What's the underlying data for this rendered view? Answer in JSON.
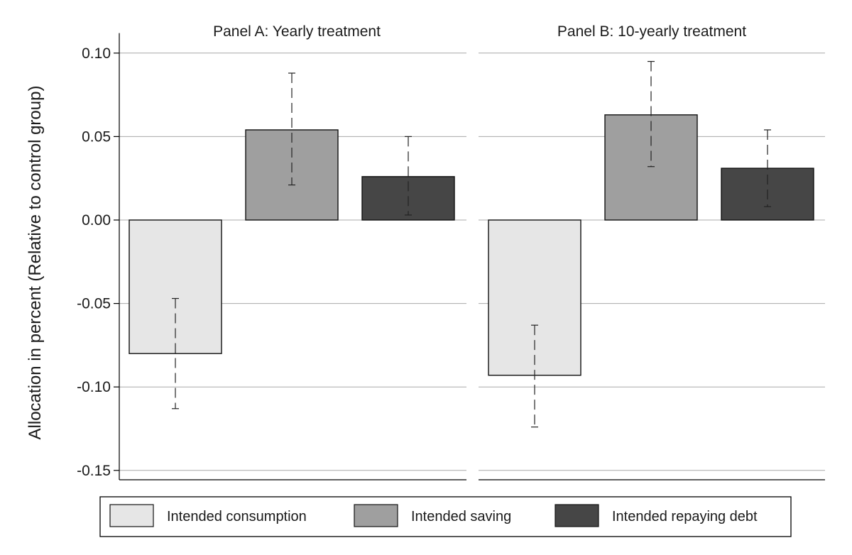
{
  "chart_data": {
    "type": "bar",
    "ylabel": "Allocation in percent (Relative to control group)",
    "ylim": [
      -0.155,
      0.112
    ],
    "yticks": [
      0.1,
      0.05,
      0.0,
      -0.05,
      -0.1,
      -0.15
    ],
    "ytick_labels": [
      "0.10",
      "0.05",
      "0.00",
      "-0.05",
      "-0.10",
      "-0.15"
    ],
    "grid": true,
    "legend_position": "bottom",
    "series": [
      {
        "name": "Intended consumption",
        "color": "#e6e6e6"
      },
      {
        "name": "Intended saving",
        "color": "#9f9f9f"
      },
      {
        "name": "Intended repaying debt",
        "color": "#464646"
      }
    ],
    "panels": [
      {
        "title": "Panel A: Yearly treatment",
        "values": [
          -0.08,
          0.054,
          0.026
        ],
        "ci_low": [
          -0.113,
          0.021,
          0.003
        ],
        "ci_high": [
          -0.047,
          0.088,
          0.05
        ]
      },
      {
        "title": "Panel B: 10-yearly treatment",
        "values": [
          -0.093,
          0.063,
          0.031
        ],
        "ci_low": [
          -0.124,
          0.032,
          0.008
        ],
        "ci_high": [
          -0.063,
          0.095,
          0.054
        ]
      }
    ]
  }
}
